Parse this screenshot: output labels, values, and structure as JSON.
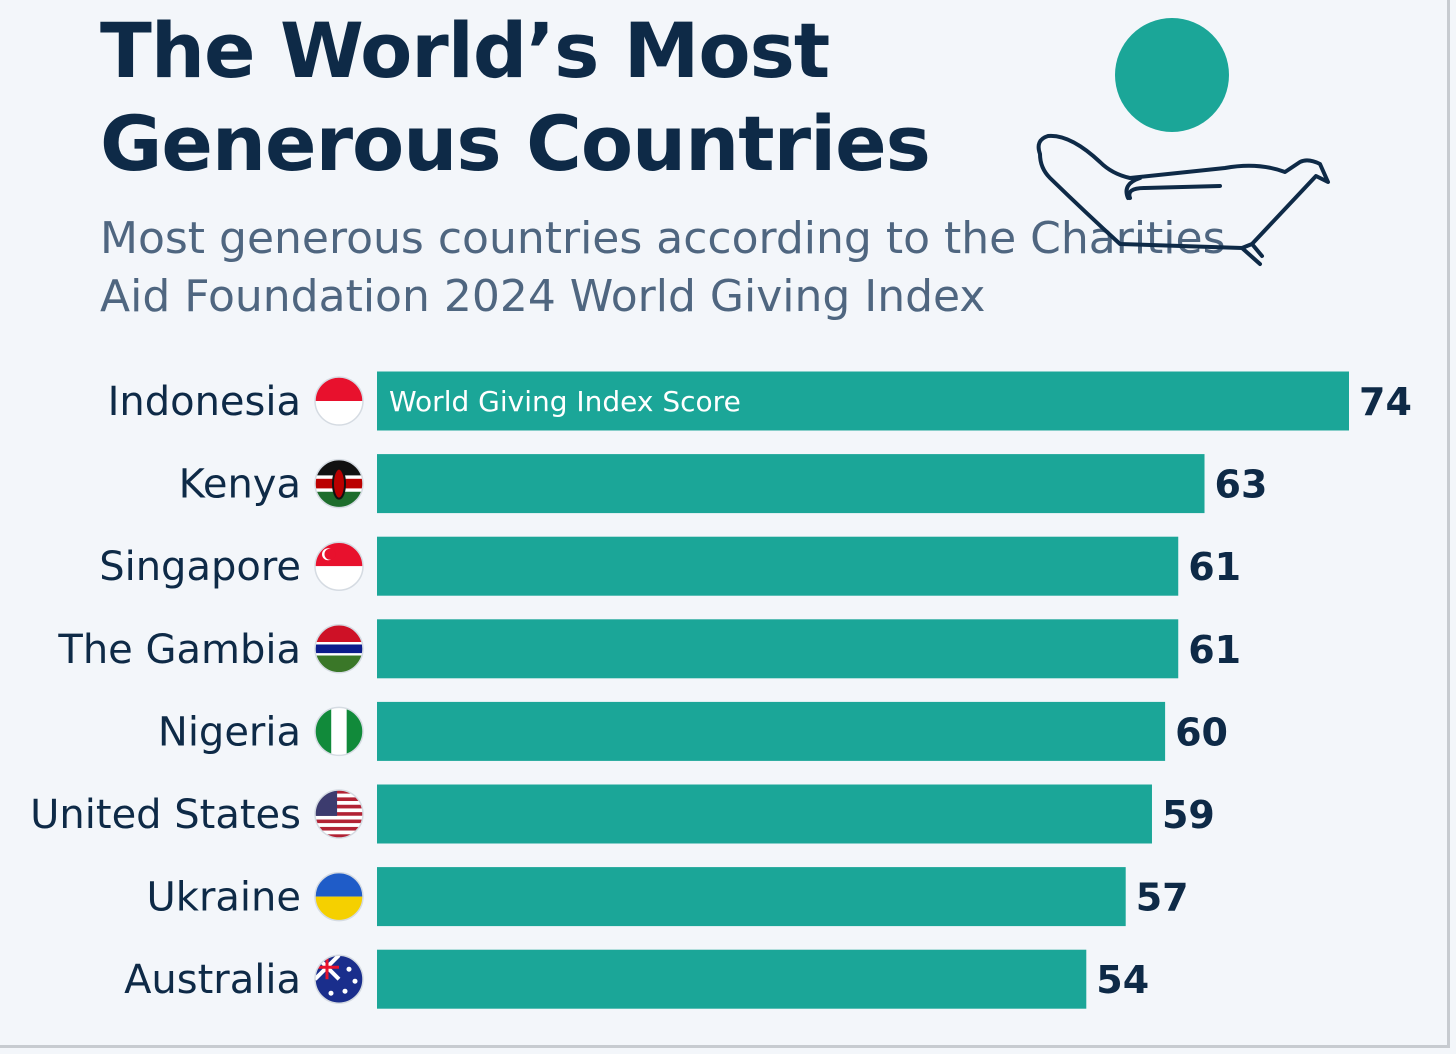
{
  "colors": {
    "bar": "#1ba698",
    "title": "#0e2a47",
    "subtitle": "#4f6680",
    "background": "#f3f6fa",
    "icon_coin": "#1ba698",
    "icon_stroke": "#0e2a47"
  },
  "icon": "open-hand-with-coin-icon",
  "chart_data": {
    "type": "bar",
    "orientation": "horizontal",
    "title": "The World’s Most Generous Countries",
    "subtitle": "Most generous countries according to the Charities Aid Foundation 2024 World Giving Index",
    "series_label": "World Giving Index Score",
    "categories": [
      "Indonesia",
      "Kenya",
      "Singapore",
      "The Gambia",
      "Nigeria",
      "United States",
      "Ukraine",
      "Australia"
    ],
    "values": [
      74,
      63,
      61,
      61,
      60,
      59,
      57,
      54
    ],
    "flags": [
      "indonesia-flag-icon",
      "kenya-flag-icon",
      "singapore-flag-icon",
      "gambia-flag-icon",
      "nigeria-flag-icon",
      "united-states-flag-icon",
      "ukraine-flag-icon",
      "australia-flag-icon"
    ],
    "xlabel": "",
    "ylabel": "",
    "xlim": [
      0,
      74
    ]
  }
}
